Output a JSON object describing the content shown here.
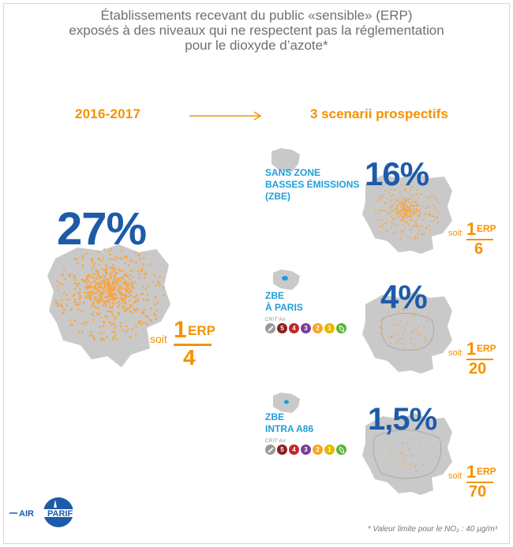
{
  "title": {
    "line1": "Établissements recevant du public «sensible» (ERP)",
    "line2": "exposés à des niveaux qui ne respectent pas la réglementation",
    "line3": "pour le dioxyde d’azote*"
  },
  "period_label": "2016-2017",
  "scenarios_title": "3 scenarii prospectifs",
  "current": {
    "percent": "27%",
    "ratio_prefix": "soit",
    "ratio_num": "1",
    "ratio_unit": "ERP",
    "ratio_den": "4"
  },
  "scenarios": [
    {
      "label_lines": [
        "SANS ZONE",
        "BASSES ÉMISSIONS",
        "(ZBE)"
      ],
      "percent": "16%",
      "ratio_prefix": "soit",
      "ratio_num": "1",
      "ratio_unit": "ERP",
      "ratio_den": "6"
    },
    {
      "label_lines": [
        "ZBE",
        "À PARIS"
      ],
      "critair_label": "CRIT'Air",
      "percent": "4%",
      "ratio_prefix": "soit",
      "ratio_num": "1",
      "ratio_unit": "ERP",
      "ratio_den": "20"
    },
    {
      "label_lines": [
        "ZBE",
        "INTRA A86"
      ],
      "critair_label": "CRIT'Air",
      "percent": "1,5%",
      "ratio_prefix": "soit",
      "ratio_num": "1",
      "ratio_unit": "ERP",
      "ratio_den": "70"
    }
  ],
  "critair_badges": [
    {
      "text": "",
      "color": "#9a9a9a",
      "icon": "no-entry-icon"
    },
    {
      "text": "5",
      "color": "#8b1e22"
    },
    {
      "text": "4",
      "color": "#c1272d"
    },
    {
      "text": "3",
      "color": "#7b3f98"
    },
    {
      "text": "2",
      "color": "#f5a623"
    },
    {
      "text": "1",
      "color": "#e6b800"
    },
    {
      "text": "",
      "color": "#5ab431",
      "icon": "leaf-icon"
    }
  ],
  "logo": {
    "left": "AIR",
    "right": "PARIF"
  },
  "footnote": "* Valeur limite pour le NO₂ : 40 µg/m³",
  "colors": {
    "orange": "#f39200",
    "blue": "#1d5ba9",
    "lightblue": "#1d9fd9",
    "map": "#c9c9c9",
    "dots": "#f7a541"
  }
}
